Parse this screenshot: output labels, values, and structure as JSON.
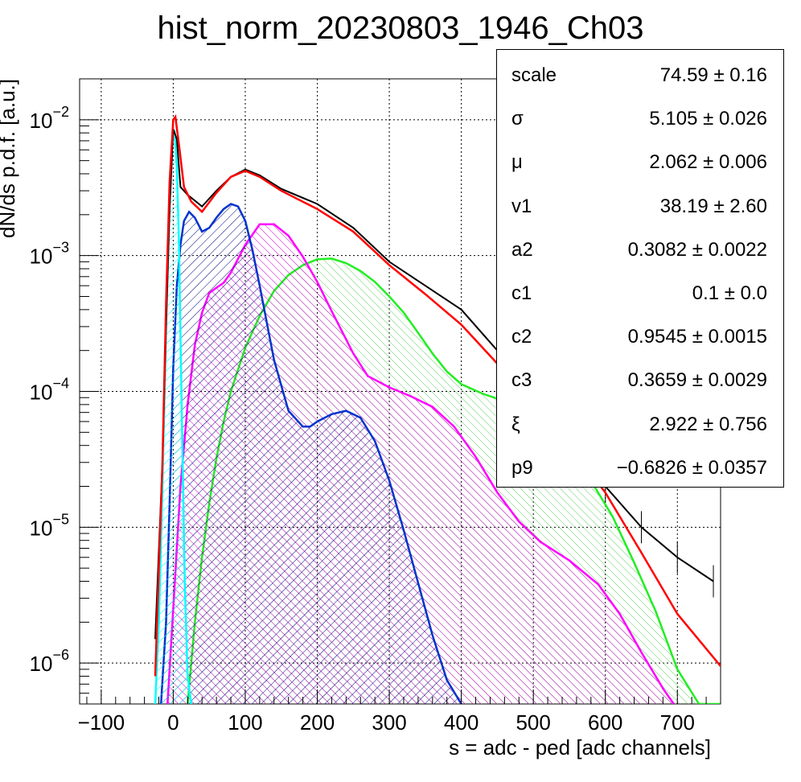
{
  "chart_data": {
    "type": "line",
    "title": "hist_norm_20230803_1946_Ch03",
    "xlabel": "s = adc - ped [adc channels]",
    "ylabel": "dN/ds p.d.f. [a.u.]",
    "xlim": [
      -130,
      760
    ],
    "ylim": [
      5e-07,
      0.02
    ],
    "yscale": "log",
    "grid": true,
    "x_ticks": [
      -100,
      0,
      100,
      200,
      300,
      400,
      500,
      600,
      700
    ],
    "y_ticks": [
      {
        "mantissa": "10",
        "exponent": "−2",
        "value": 0.01
      },
      {
        "mantissa": "10",
        "exponent": "−3",
        "value": 0.001
      },
      {
        "mantissa": "10",
        "exponent": "−4",
        "value": 0.0001
      },
      {
        "mantissa": "10",
        "exponent": "−5",
        "value": 1e-05
      },
      {
        "mantissa": "10",
        "exponent": "−6",
        "value": 1e-06
      }
    ],
    "series": [
      {
        "color": "#000000",
        "style": "histogram",
        "x": [
          -25,
          -15,
          -10,
          -5,
          0,
          5,
          10,
          20,
          40,
          60,
          80,
          100,
          120,
          150,
          200,
          250,
          300,
          350,
          400,
          450,
          500,
          550,
          600,
          650,
          700,
          750
        ],
        "y": [
          1.5e-06,
          3e-05,
          0.0003,
          0.0022,
          0.0085,
          0.0072,
          0.0032,
          0.0028,
          0.0023,
          0.003,
          0.0038,
          0.0043,
          0.0039,
          0.0031,
          0.0024,
          0.0016,
          0.0009,
          0.0006,
          0.0004,
          0.0002,
          0.00014,
          8e-05,
          2e-05,
          1e-05,
          6e-06,
          4e-06
        ]
      },
      {
        "color": "#ff0000",
        "style": "fit",
        "x": [
          -25,
          -15,
          -10,
          -5,
          0,
          3,
          8,
          15,
          25,
          40,
          60,
          80,
          100,
          120,
          150,
          200,
          250,
          300,
          350,
          400,
          450,
          500,
          550,
          600,
          650,
          700,
          760
        ],
        "y": [
          8e-07,
          3e-05,
          0.00045,
          0.0035,
          0.01,
          0.0105,
          0.0065,
          0.0032,
          0.0025,
          0.0021,
          0.0029,
          0.0038,
          0.0042,
          0.0038,
          0.003,
          0.0022,
          0.0015,
          0.00085,
          0.00052,
          0.00031,
          0.00016,
          8e-05,
          4e-05,
          1.8e-05,
          6.5e-06,
          2.3e-06,
          9.5e-07
        ]
      },
      {
        "color": "#00ffff",
        "style": "hatched",
        "x": [
          -25,
          -20,
          -15,
          -10,
          -5,
          -2,
          0,
          2,
          5,
          8,
          10,
          13,
          16,
          20,
          25
        ],
        "y": [
          5e-07,
          2e-06,
          2e-05,
          0.0003,
          0.0025,
          0.006,
          0.0085,
          0.0082,
          0.0045,
          0.0012,
          0.00025,
          3e-05,
          4e-06,
          8e-07,
          5e-07
        ]
      },
      {
        "color": "#0000ff",
        "style": "hatched",
        "x": [
          -17,
          -10,
          -5,
          0,
          5,
          10,
          15,
          22,
          30,
          40,
          50,
          60,
          70,
          80,
          90,
          100,
          110,
          120,
          130,
          140,
          160,
          180,
          190,
          200,
          220,
          240,
          260,
          280,
          300,
          320,
          340,
          360,
          380,
          400
        ],
        "y": [
          5e-07,
          2e-06,
          1.5e-05,
          0.00015,
          0.0006,
          0.0012,
          0.0018,
          0.0021,
          0.0019,
          0.0015,
          0.0016,
          0.0019,
          0.0022,
          0.0024,
          0.0023,
          0.0018,
          0.0011,
          0.0006,
          0.00032,
          0.00017,
          7.2e-05,
          5.5e-05,
          5.5e-05,
          6e-05,
          6.8e-05,
          7.2e-05,
          6.4e-05,
          4.3e-05,
          2.2e-05,
          9.5e-06,
          3.9e-06,
          1.6e-06,
          7.5e-07,
          5e-07
        ]
      },
      {
        "color": "#ff00ff",
        "style": "hatched",
        "x": [
          -8,
          0,
          10,
          20,
          30,
          40,
          50,
          60,
          70,
          80,
          100,
          120,
          140,
          160,
          180,
          200,
          220,
          250,
          270,
          300,
          330,
          360,
          390,
          420,
          450,
          480,
          510,
          550,
          590,
          620,
          650,
          680,
          695
        ],
        "y": [
          5e-07,
          2.5e-06,
          2e-05,
          8e-05,
          0.00022,
          0.00038,
          0.00053,
          0.00058,
          0.00063,
          0.00075,
          0.0012,
          0.0017,
          0.0017,
          0.0014,
          0.00098,
          0.00064,
          0.00039,
          0.00019,
          0.00013,
          0.000107,
          9.2e-05,
          7.7e-05,
          5.5e-05,
          3.3e-05,
          1.8e-05,
          1.1e-05,
          7.8e-06,
          5.7e-06,
          3.8e-06,
          2.3e-06,
          1.2e-06,
          6.5e-07,
          5e-07
        ]
      },
      {
        "color": "#00ff00",
        "style": "hatched",
        "x": [
          20,
          30,
          40,
          50,
          60,
          70,
          80,
          100,
          120,
          140,
          160,
          180,
          200,
          220,
          240,
          260,
          280,
          300,
          320,
          340,
          360,
          380,
          400,
          430,
          460,
          490,
          520,
          550,
          580,
          610,
          640,
          670,
          700,
          730,
          760
        ],
        "y": [
          5e-07,
          2e-06,
          6e-06,
          1.5e-05,
          3.2e-05,
          6e-05,
          0.0001,
          0.00021,
          0.00036,
          0.00055,
          0.00072,
          0.00085,
          0.00094,
          0.00095,
          0.00088,
          0.00077,
          0.00064,
          0.0005,
          0.00038,
          0.00027,
          0.00019,
          0.00014,
          0.000113,
          9.6e-05,
          8.5e-05,
          7e-05,
          5.4e-05,
          3.7e-05,
          2.2e-05,
          1.2e-05,
          5.5e-06,
          2.4e-06,
          9e-07,
          5e-07,
          5e-07
        ]
      }
    ]
  },
  "stats": [
    {
      "name": "scale",
      "value": "74.59 ± 0.16"
    },
    {
      "name": "σ",
      "value": "5.105 ± 0.026"
    },
    {
      "name": "μ",
      "value": "2.062 ± 0.006"
    },
    {
      "name": "v1",
      "value": "38.19 ± 2.60"
    },
    {
      "name": "a2",
      "value": "0.3082 ± 0.0022"
    },
    {
      "name": "c1",
      "value": "0.1 ± 0.0"
    },
    {
      "name": "c2",
      "value": "0.9545 ± 0.0015"
    },
    {
      "name": "c3",
      "value": "0.3659 ± 0.0029"
    },
    {
      "name": "ξ",
      "value": "2.922 ± 0.756"
    },
    {
      "name": "p9",
      "value": "−0.6826 ± 0.0357"
    }
  ]
}
